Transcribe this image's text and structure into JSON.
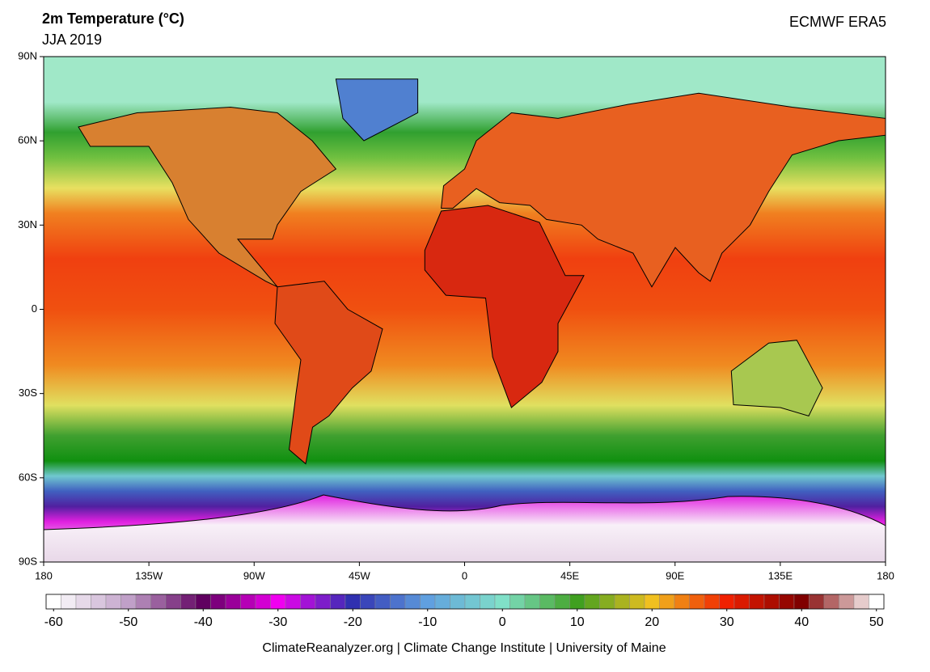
{
  "header": {
    "title": "2m Temperature (°C)",
    "subtitle": "JJA 2019",
    "source": "ECMWF ERA5"
  },
  "map": {
    "lat_ticks": [
      {
        "value": 90,
        "label": "90N"
      },
      {
        "value": 60,
        "label": "60N"
      },
      {
        "value": 30,
        "label": "30N"
      },
      0,
      {
        "value": -30,
        "label": "30S"
      },
      {
        "value": -60,
        "label": "60S"
      },
      {
        "value": -90,
        "label": "90S"
      }
    ],
    "lon_ticks": [
      {
        "value": -180,
        "label": "180"
      },
      {
        "value": -135,
        "label": "135W"
      },
      {
        "value": -90,
        "label": "90W"
      },
      {
        "value": -45,
        "label": "45W"
      },
      0,
      {
        "value": 45,
        "label": "45E"
      },
      {
        "value": 90,
        "label": "90E"
      },
      {
        "value": 135,
        "label": "135E"
      },
      180
    ]
  },
  "colorbar": {
    "ticks": [
      -60,
      -50,
      -40,
      -30,
      -20,
      -10,
      0,
      10,
      20,
      30,
      40,
      50
    ],
    "colors": [
      "#ffffff",
      "#c0a0c8",
      "#600060",
      "#f000f0",
      "#3030b0",
      "#60a0e0",
      "#80e0c8",
      "#40a020",
      "#f0c020",
      "#f02000",
      "#800000",
      "#ffffff"
    ]
  },
  "footer": "ClimateReanalyzer.org | Climate Change Institute | University of Maine"
}
